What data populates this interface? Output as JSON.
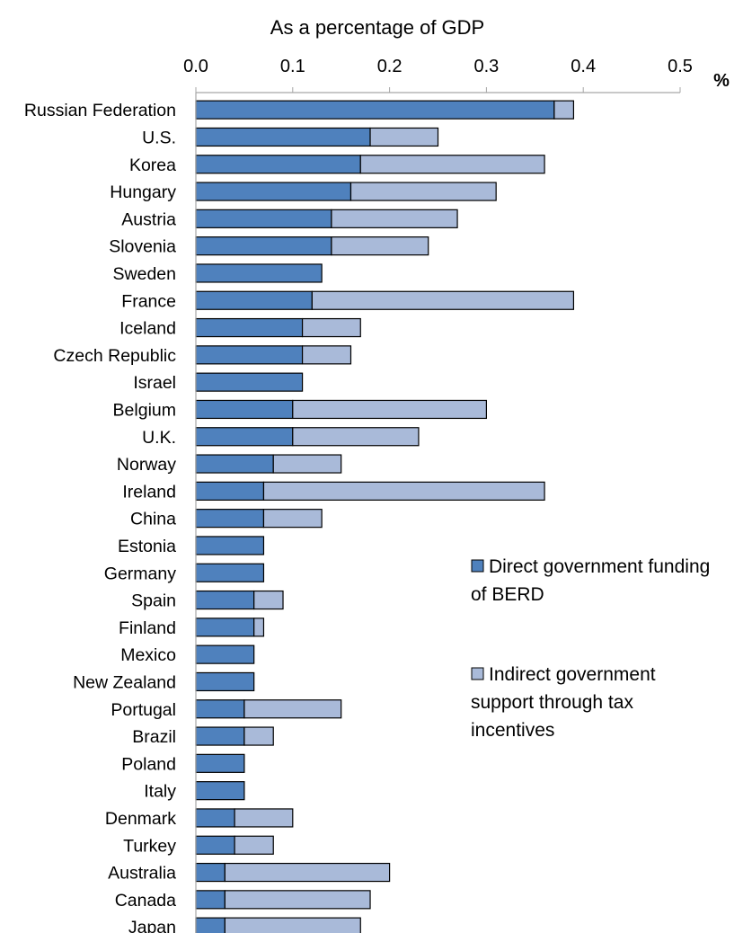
{
  "chart_data": {
    "type": "bar",
    "orientation": "horizontal",
    "stacked": true,
    "title": "As a percentage of GDP",
    "unit": "%",
    "xlim": [
      0,
      0.5
    ],
    "xticks": [
      "0.0",
      "0.1",
      "0.2",
      "0.3",
      "0.4",
      "0.5"
    ],
    "grid": false,
    "legend_position": "right",
    "categories": [
      "Russian Federation",
      "U.S.",
      "Korea",
      "Hungary",
      "Austria",
      "Slovenia",
      "Sweden",
      "France",
      "Iceland",
      "Czech Republic",
      "Israel",
      "Belgium",
      "U.K.",
      "Norway",
      "Ireland",
      "China",
      "Estonia",
      "Germany",
      "Spain",
      "Finland",
      "Mexico",
      "New Zealand",
      "Portugal",
      "Brazil",
      "Poland",
      "Italy",
      "Denmark",
      "Turkey",
      "Australia",
      "Canada",
      "Japan"
    ],
    "series": [
      {
        "name": "Direct government funding of BERD",
        "legend_lines": [
          "Direct government funding",
          "of BERD"
        ],
        "color": "#4f81bd",
        "values": [
          0.37,
          0.18,
          0.17,
          0.16,
          0.14,
          0.14,
          0.13,
          0.12,
          0.11,
          0.11,
          0.11,
          0.1,
          0.1,
          0.08,
          0.07,
          0.07,
          0.07,
          0.07,
          0.06,
          0.06,
          0.06,
          0.06,
          0.05,
          0.05,
          0.05,
          0.05,
          0.04,
          0.04,
          0.03,
          0.03,
          0.03
        ]
      },
      {
        "name": "Indirect government support through tax incentives",
        "legend_lines": [
          "Indirect government",
          "support through tax",
          "incentives"
        ],
        "color": "#a9bad9",
        "values": [
          0.02,
          0.07,
          0.19,
          0.15,
          0.13,
          0.1,
          0.0,
          0.27,
          0.06,
          0.05,
          0.0,
          0.2,
          0.13,
          0.07,
          0.29,
          0.06,
          0.0,
          0.0,
          0.03,
          0.01,
          0.0,
          0.0,
          0.1,
          0.03,
          0.0,
          0.0,
          0.06,
          0.04,
          0.17,
          0.15,
          0.14
        ]
      }
    ]
  }
}
